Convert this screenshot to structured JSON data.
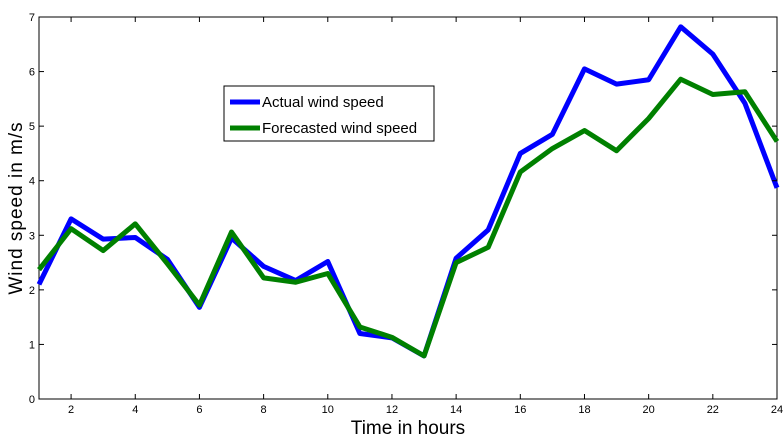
{
  "chart_data": {
    "type": "line",
    "title": "",
    "xlabel": "Time in hours",
    "ylabel": "Wind speed in m/s",
    "xlim": [
      1,
      24
    ],
    "ylim": [
      0,
      7
    ],
    "xticks": [
      2,
      4,
      6,
      8,
      10,
      12,
      14,
      16,
      18,
      20,
      22,
      24
    ],
    "yticks": [
      0,
      1,
      2,
      3,
      4,
      5,
      6,
      7
    ],
    "grid": false,
    "legend_position": "upper-center",
    "x": [
      1,
      2,
      3,
      4,
      5,
      6,
      7,
      8,
      9,
      10,
      11,
      12,
      13,
      14,
      15,
      16,
      17,
      18,
      19,
      20,
      21,
      22,
      23,
      24
    ],
    "series": [
      {
        "name": "Actual wind speed",
        "color": "#0000FF",
        "values": [
          2.1,
          3.3,
          2.93,
          2.96,
          2.56,
          1.68,
          2.95,
          2.43,
          2.17,
          2.52,
          1.2,
          1.12,
          0.79,
          2.58,
          3.1,
          4.5,
          4.85,
          6.05,
          5.77,
          5.85,
          6.82,
          6.32,
          5.42,
          3.87
        ]
      },
      {
        "name": "Forecasted wind speed",
        "color": "#008000",
        "values": [
          2.37,
          3.12,
          2.72,
          3.21,
          2.48,
          1.72,
          3.06,
          2.22,
          2.14,
          2.3,
          1.32,
          1.13,
          0.79,
          2.5,
          2.78,
          4.16,
          4.59,
          4.92,
          4.55,
          5.14,
          5.86,
          5.58,
          5.63,
          4.72
        ]
      }
    ]
  }
}
